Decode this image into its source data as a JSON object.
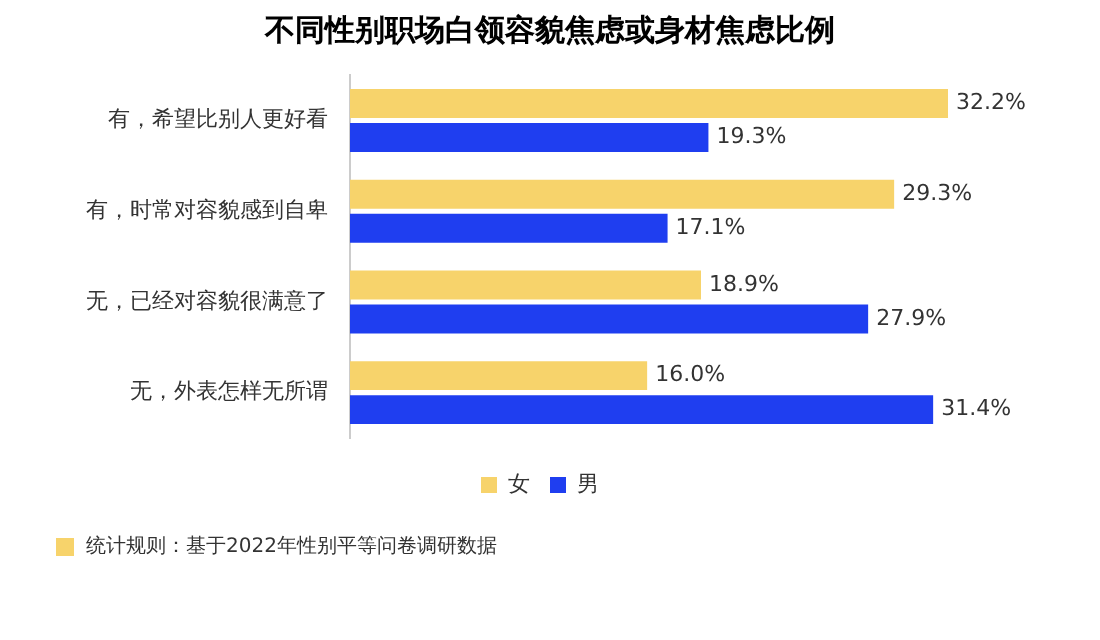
{
  "chart_data": {
    "type": "bar",
    "orientation": "horizontal",
    "title": "不同性别职场白领容貌焦虑或身材焦虑比例",
    "categories": [
      "有，希望比别人更好看",
      "有，时常对容貌感到自卑",
      "无，已经对容貌很满意了",
      "无，外表怎样无所谓"
    ],
    "series": [
      {
        "name": "女",
        "color": "#f7d36b",
        "values": [
          32.2,
          29.3,
          18.9,
          16.0
        ],
        "value_labels": [
          "32.2%",
          "29.3%",
          "18.9%",
          "16.0%"
        ]
      },
      {
        "name": "男",
        "color": "#1f3ef0",
        "values": [
          19.3,
          17.1,
          27.9,
          31.4
        ],
        "value_labels": [
          "19.3%",
          "17.1%",
          "27.9%",
          "31.4%"
        ]
      }
    ],
    "tick_labels": "y",
    "legend": "bottom",
    "grid": false,
    "annotations": [
      "统计规则：基于2022年性别平等问卷调研数据"
    ]
  }
}
